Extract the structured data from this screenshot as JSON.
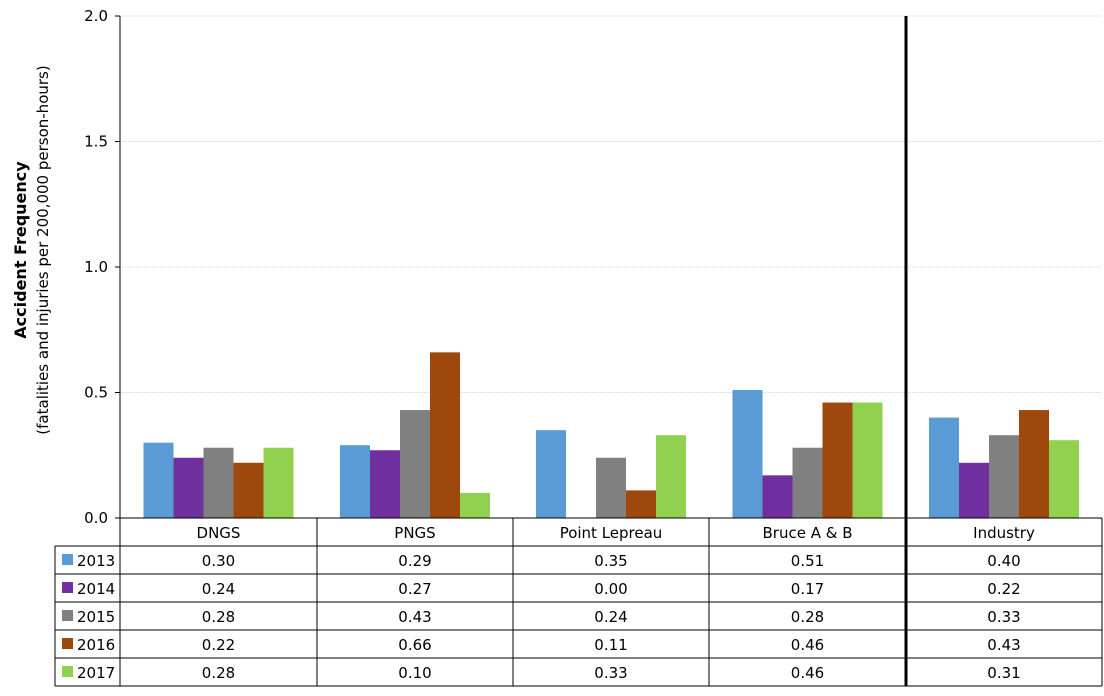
{
  "chart_data": {
    "type": "bar",
    "ylabel": "Accident Frequency",
    "ylabel_sub": "(fatalities and injuries per 200,000 person-hours)",
    "ylim": [
      0,
      2.0
    ],
    "yticks": [
      "0.0",
      "0.5",
      "1.0",
      "1.5",
      "2.0"
    ],
    "categories": [
      "DNGS",
      "PNGS",
      "Point Lepreau",
      "Bruce A & B",
      "Industry"
    ],
    "grid": true,
    "legend": "data-table-left",
    "series": [
      {
        "name": "2013",
        "color": "#5b9bd5",
        "values": [
          0.3,
          0.29,
          0.35,
          0.51,
          0.4
        ],
        "labels": [
          "0.30",
          "0.29",
          "0.35",
          "0.51",
          "0.40"
        ]
      },
      {
        "name": "2014",
        "color": "#7030a0",
        "values": [
          0.24,
          0.27,
          0.0,
          0.17,
          0.22
        ],
        "labels": [
          "0.24",
          "0.27",
          "0.00",
          "0.17",
          "0.22"
        ]
      },
      {
        "name": "2015",
        "color": "#808080",
        "values": [
          0.28,
          0.43,
          0.24,
          0.28,
          0.33
        ],
        "labels": [
          "0.28",
          "0.43",
          "0.24",
          "0.28",
          "0.33"
        ]
      },
      {
        "name": "2016",
        "color": "#9e480e",
        "values": [
          0.22,
          0.66,
          0.11,
          0.46,
          0.43
        ],
        "labels": [
          "0.22",
          "0.66",
          "0.11",
          "0.46",
          "0.43"
        ]
      },
      {
        "name": "2017",
        "color": "#92d050",
        "values": [
          0.28,
          0.1,
          0.33,
          0.46,
          0.31
        ],
        "labels": [
          "0.28",
          "0.10",
          "0.33",
          "0.46",
          "0.31"
        ]
      }
    ]
  }
}
